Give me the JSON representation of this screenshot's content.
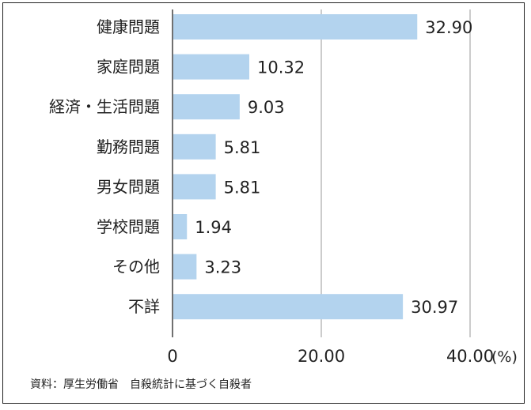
{
  "chart_data": {
    "type": "bar",
    "orientation": "horizontal",
    "categories": [
      "健康問題",
      "家庭問題",
      "経済・生活問題",
      "勤務問題",
      "男女問題",
      "学校問題",
      "その他",
      "不詳"
    ],
    "values": [
      32.9,
      10.32,
      9.03,
      5.81,
      5.81,
      1.94,
      3.23,
      30.97
    ],
    "value_labels": [
      "32.90",
      "10.32",
      "9.03",
      "5.81",
      "5.81",
      "1.94",
      "3.23",
      "30.97"
    ],
    "xlim": [
      0,
      40
    ],
    "xticks": [
      0,
      20,
      40
    ],
    "xtick_labels": [
      "0",
      "20.00",
      "40.00"
    ],
    "x_unit": "(%)",
    "grid": "vertical",
    "bar_color": "#b3d3ee",
    "gridline_color": "#9a9a9a"
  },
  "source_note": "資料：厚生労働省　自殺統計に基づく自殺者"
}
